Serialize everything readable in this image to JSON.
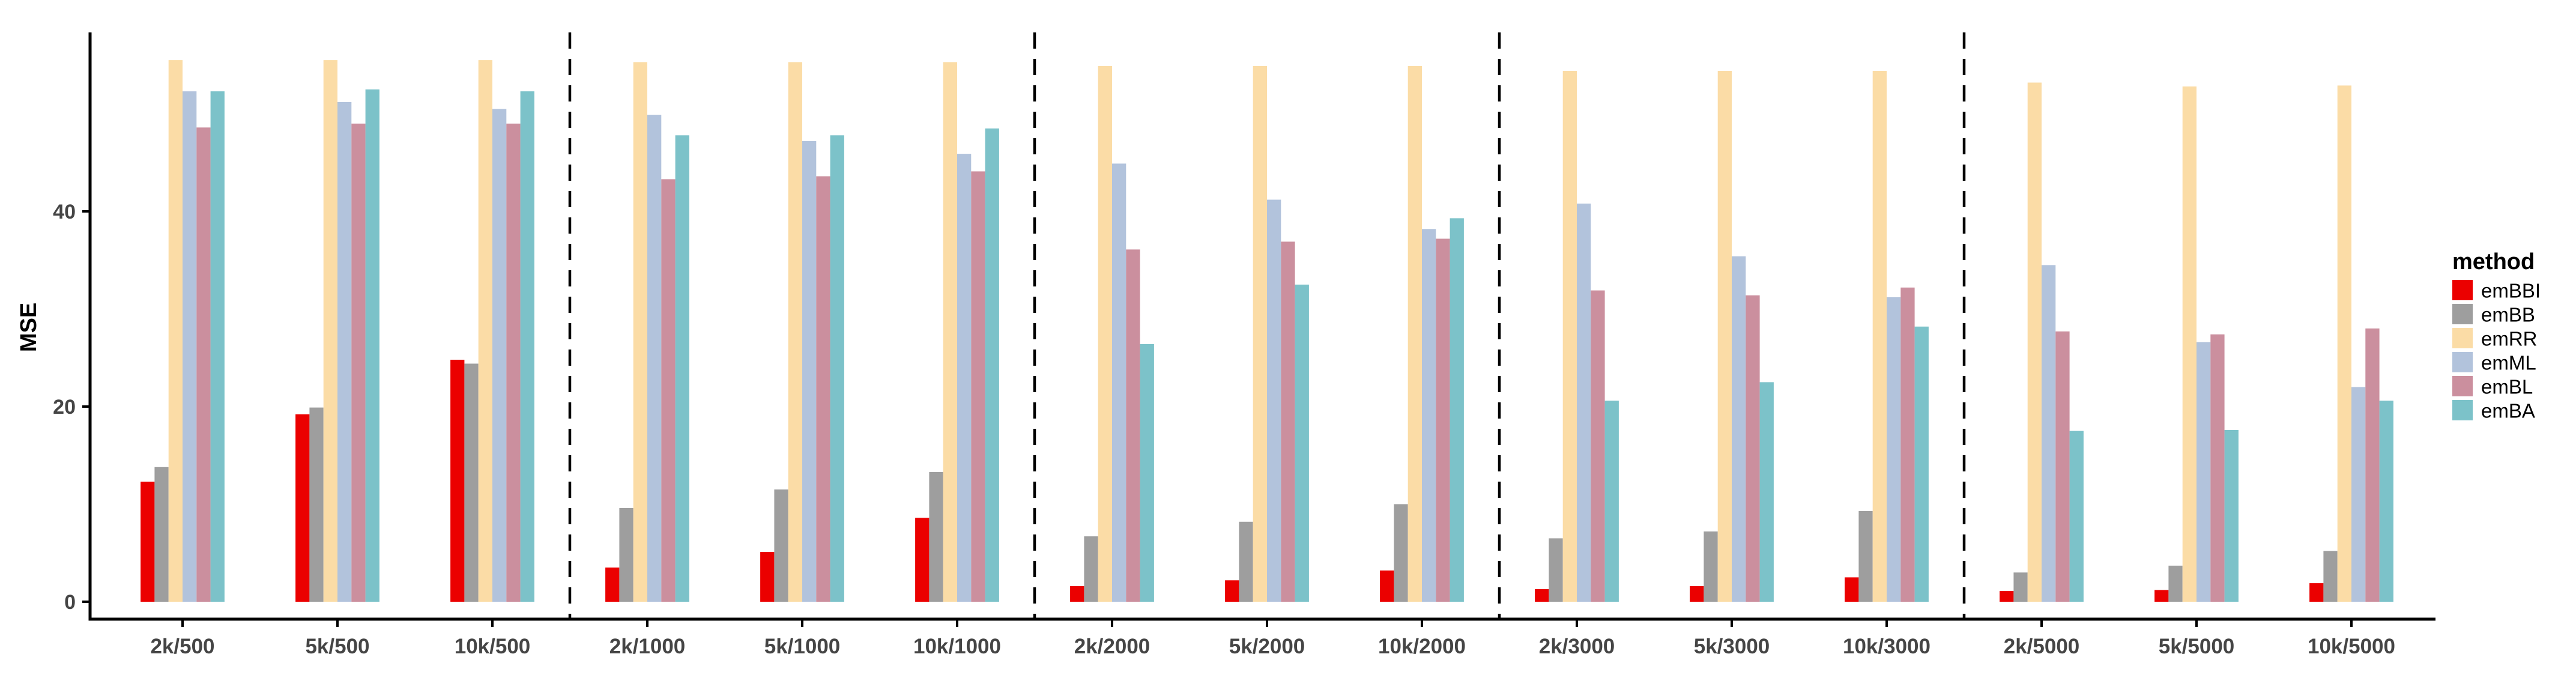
{
  "chart_data": {
    "type": "bar",
    "title": "",
    "ylabel": "MSE",
    "xlabel": "",
    "legend_title": "method",
    "legend_position": "right",
    "grid": false,
    "yticks": [
      0,
      20,
      40
    ],
    "ylim": [
      0,
      58
    ],
    "categories": [
      "2k/500",
      "5k/500",
      "10k/500",
      "2k/1000",
      "5k/1000",
      "10k/1000",
      "2k/2000",
      "5k/2000",
      "10k/2000",
      "2k/3000",
      "5k/3000",
      "10k/3000",
      "2k/5000",
      "5k/5000",
      "10k/5000"
    ],
    "panel_separators_after": [
      "10k/500",
      "10k/1000",
      "10k/2000",
      "10k/3000"
    ],
    "series": [
      {
        "name": "emBBI",
        "color": "#EB0000",
        "values": [
          12.3,
          19.2,
          24.8,
          3.5,
          5.1,
          8.6,
          1.6,
          2.2,
          3.2,
          1.3,
          1.6,
          2.5,
          1.1,
          1.2,
          1.9
        ]
      },
      {
        "name": "emBB",
        "color": "#9E9E9E",
        "values": [
          13.8,
          19.9,
          24.4,
          9.6,
          11.5,
          13.3,
          6.7,
          8.2,
          10.0,
          6.5,
          7.2,
          9.3,
          3.0,
          3.7,
          5.2
        ]
      },
      {
        "name": "emRR",
        "color": "#FBDCA6",
        "values": [
          55.5,
          55.5,
          55.5,
          55.3,
          55.3,
          55.3,
          54.9,
          54.9,
          54.9,
          54.4,
          54.4,
          54.4,
          53.2,
          52.8,
          52.9
        ]
      },
      {
        "name": "emML",
        "color": "#B2C3DC",
        "values": [
          52.3,
          51.2,
          50.5,
          49.9,
          47.2,
          45.9,
          44.9,
          41.2,
          38.2,
          40.8,
          35.4,
          31.2,
          34.5,
          26.6,
          22.0
        ]
      },
      {
        "name": "emBL",
        "color": "#CB8F9E",
        "values": [
          48.6,
          49.0,
          49.0,
          43.3,
          43.6,
          44.1,
          36.1,
          36.9,
          37.2,
          31.9,
          31.4,
          32.2,
          27.7,
          27.4,
          28.0
        ]
      },
      {
        "name": "emBA",
        "color": "#7CC2C9",
        "values": [
          52.3,
          52.5,
          52.3,
          47.8,
          47.8,
          48.5,
          26.4,
          32.5,
          39.3,
          20.6,
          22.5,
          28.2,
          17.5,
          17.6,
          20.6
        ]
      }
    ],
    "colors": {
      "axis": "#000000",
      "tick_label": "#454545",
      "separator": "#000000"
    }
  }
}
